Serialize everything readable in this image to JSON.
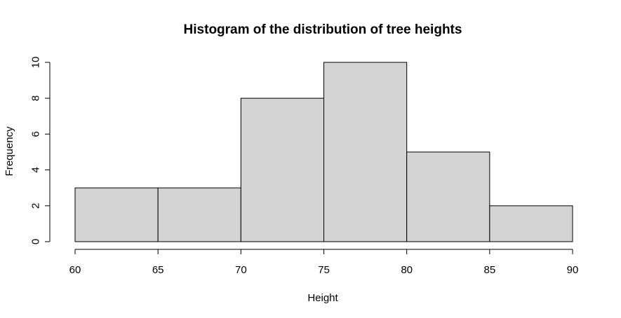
{
  "chart_data": {
    "type": "bar",
    "title": "Histogram of the distribution of tree heights",
    "xlabel": "Height",
    "ylabel": "Frequency",
    "bins": [
      {
        "start": 60,
        "end": 65,
        "value": 3
      },
      {
        "start": 65,
        "end": 70,
        "value": 3
      },
      {
        "start": 70,
        "end": 75,
        "value": 8
      },
      {
        "start": 75,
        "end": 80,
        "value": 10
      },
      {
        "start": 80,
        "end": 85,
        "value": 5
      },
      {
        "start": 85,
        "end": 90,
        "value": 2
      }
    ],
    "x_ticks": [
      60,
      65,
      70,
      75,
      80,
      85,
      90
    ],
    "y_ticks": [
      0,
      2,
      4,
      6,
      8,
      10
    ],
    "xlim": [
      60,
      90
    ],
    "ylim": [
      0,
      10
    ],
    "grid": false,
    "bar_color": "#d3d3d3",
    "edge_color": "#000000"
  }
}
